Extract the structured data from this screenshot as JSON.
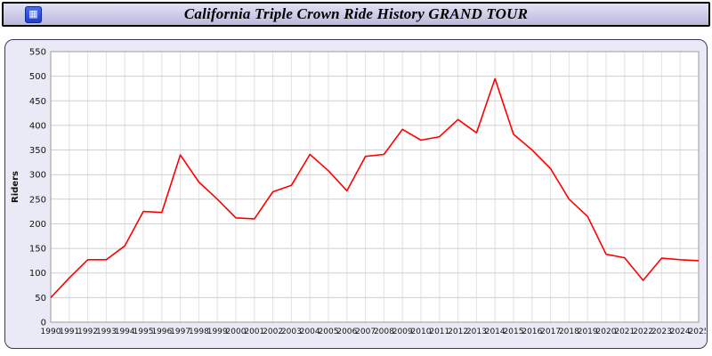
{
  "header": {
    "title": "California Triple Crown Ride History GRAND TOUR"
  },
  "chart_data": {
    "type": "line",
    "title": "California Triple Crown Ride History GRAND TOUR",
    "x": [
      "1990",
      "1991",
      "1992",
      "1993",
      "1994",
      "1995",
      "1996",
      "1997",
      "1998",
      "1999",
      "2000",
      "2001",
      "2002",
      "2003",
      "2004",
      "2005",
      "2006",
      "2007",
      "2008",
      "2009",
      "2010",
      "2011",
      "2012",
      "2013",
      "2014",
      "2015",
      "2016",
      "2017",
      "2018",
      "2019",
      "2020",
      "2021",
      "2022",
      "2023",
      "2024",
      "2025"
    ],
    "series": [
      {
        "name": "Riders",
        "values": [
          50,
          90,
          127,
          127,
          155,
          225,
          223,
          340,
          285,
          250,
          212,
          210,
          265,
          278,
          341,
          308,
          267,
          337,
          341,
          392,
          370,
          377,
          412,
          385,
          495,
          382,
          350,
          312,
          250,
          215,
          138,
          131,
          85,
          130,
          127,
          125
        ]
      }
    ],
    "xlabel": "",
    "ylabel": "Riders",
    "ylim": [
      0,
      550
    ],
    "ytick_step": 50,
    "grid": true,
    "legend": "none",
    "line_color": "#ff0000",
    "plot_bg": "#ffffff",
    "panel_bg": "#eaeaf6"
  }
}
